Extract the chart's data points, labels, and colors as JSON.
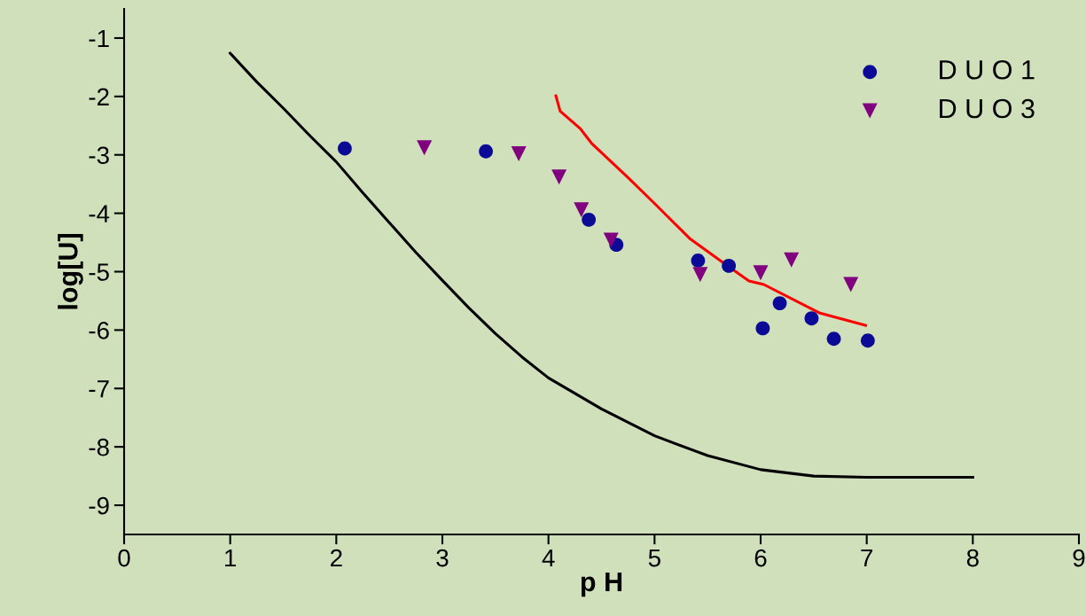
{
  "chart_data": {
    "type": "scatter",
    "xlabel": "p H",
    "ylabel": "log[U]",
    "xlim": [
      0,
      9
    ],
    "ylim": [
      -9.5,
      -0.5
    ],
    "xticks": [
      0,
      1,
      2,
      3,
      4,
      5,
      6,
      7,
      8,
      9
    ],
    "yticks": [
      -1,
      -2,
      -3,
      -4,
      -5,
      -6,
      -7,
      -8,
      -9
    ],
    "grid": false,
    "legend": "top right",
    "series": [
      {
        "name": "D U O 1",
        "marker": "circle",
        "color": "#0a0a96",
        "x": [
          2.08,
          3.41,
          4.38,
          4.64,
          5.41,
          5.7,
          6.18,
          6.02,
          6.48,
          6.69,
          7.01
        ],
        "values": [
          -2.89,
          -2.94,
          -4.11,
          -4.54,
          -4.81,
          -4.9,
          -5.54,
          -5.97,
          -5.8,
          -6.15,
          -6.18
        ]
      },
      {
        "name": "D U O 3",
        "marker": "triangle",
        "color": "#800080",
        "x": [
          2.83,
          3.72,
          4.1,
          4.31,
          4.59,
          5.43,
          6.0,
          6.29,
          6.85
        ],
        "values": [
          -2.88,
          -2.98,
          -3.38,
          -3.94,
          -4.46,
          -5.05,
          -5.02,
          -4.8,
          -5.22
        ]
      },
      {
        "type": "line",
        "color": "#000000",
        "x": [
          1,
          1.25,
          1.5,
          1.75,
          2,
          2.25,
          2.5,
          2.75,
          3,
          3.25,
          3.5,
          3.75,
          4,
          4.5,
          5,
          5.5,
          6,
          6.5,
          7,
          8
        ],
        "values": [
          -1.26,
          -1.75,
          -2.2,
          -2.67,
          -3.12,
          -3.65,
          -4.16,
          -4.67,
          -5.15,
          -5.62,
          -6.06,
          -6.46,
          -6.82,
          -7.35,
          -7.81,
          -8.15,
          -8.39,
          -8.5,
          -8.52,
          -8.52
        ]
      },
      {
        "type": "line",
        "color": "#ff0000",
        "x": [
          4.07,
          4.11,
          4.3,
          4.41,
          4.75,
          5.01,
          5.33,
          5.68,
          5.89,
          6.03,
          6.56,
          6.99
        ],
        "values": [
          -1.99,
          -2.25,
          -2.55,
          -2.81,
          -3.39,
          -3.85,
          -4.43,
          -4.89,
          -5.16,
          -5.22,
          -5.71,
          -5.92
        ]
      }
    ]
  }
}
